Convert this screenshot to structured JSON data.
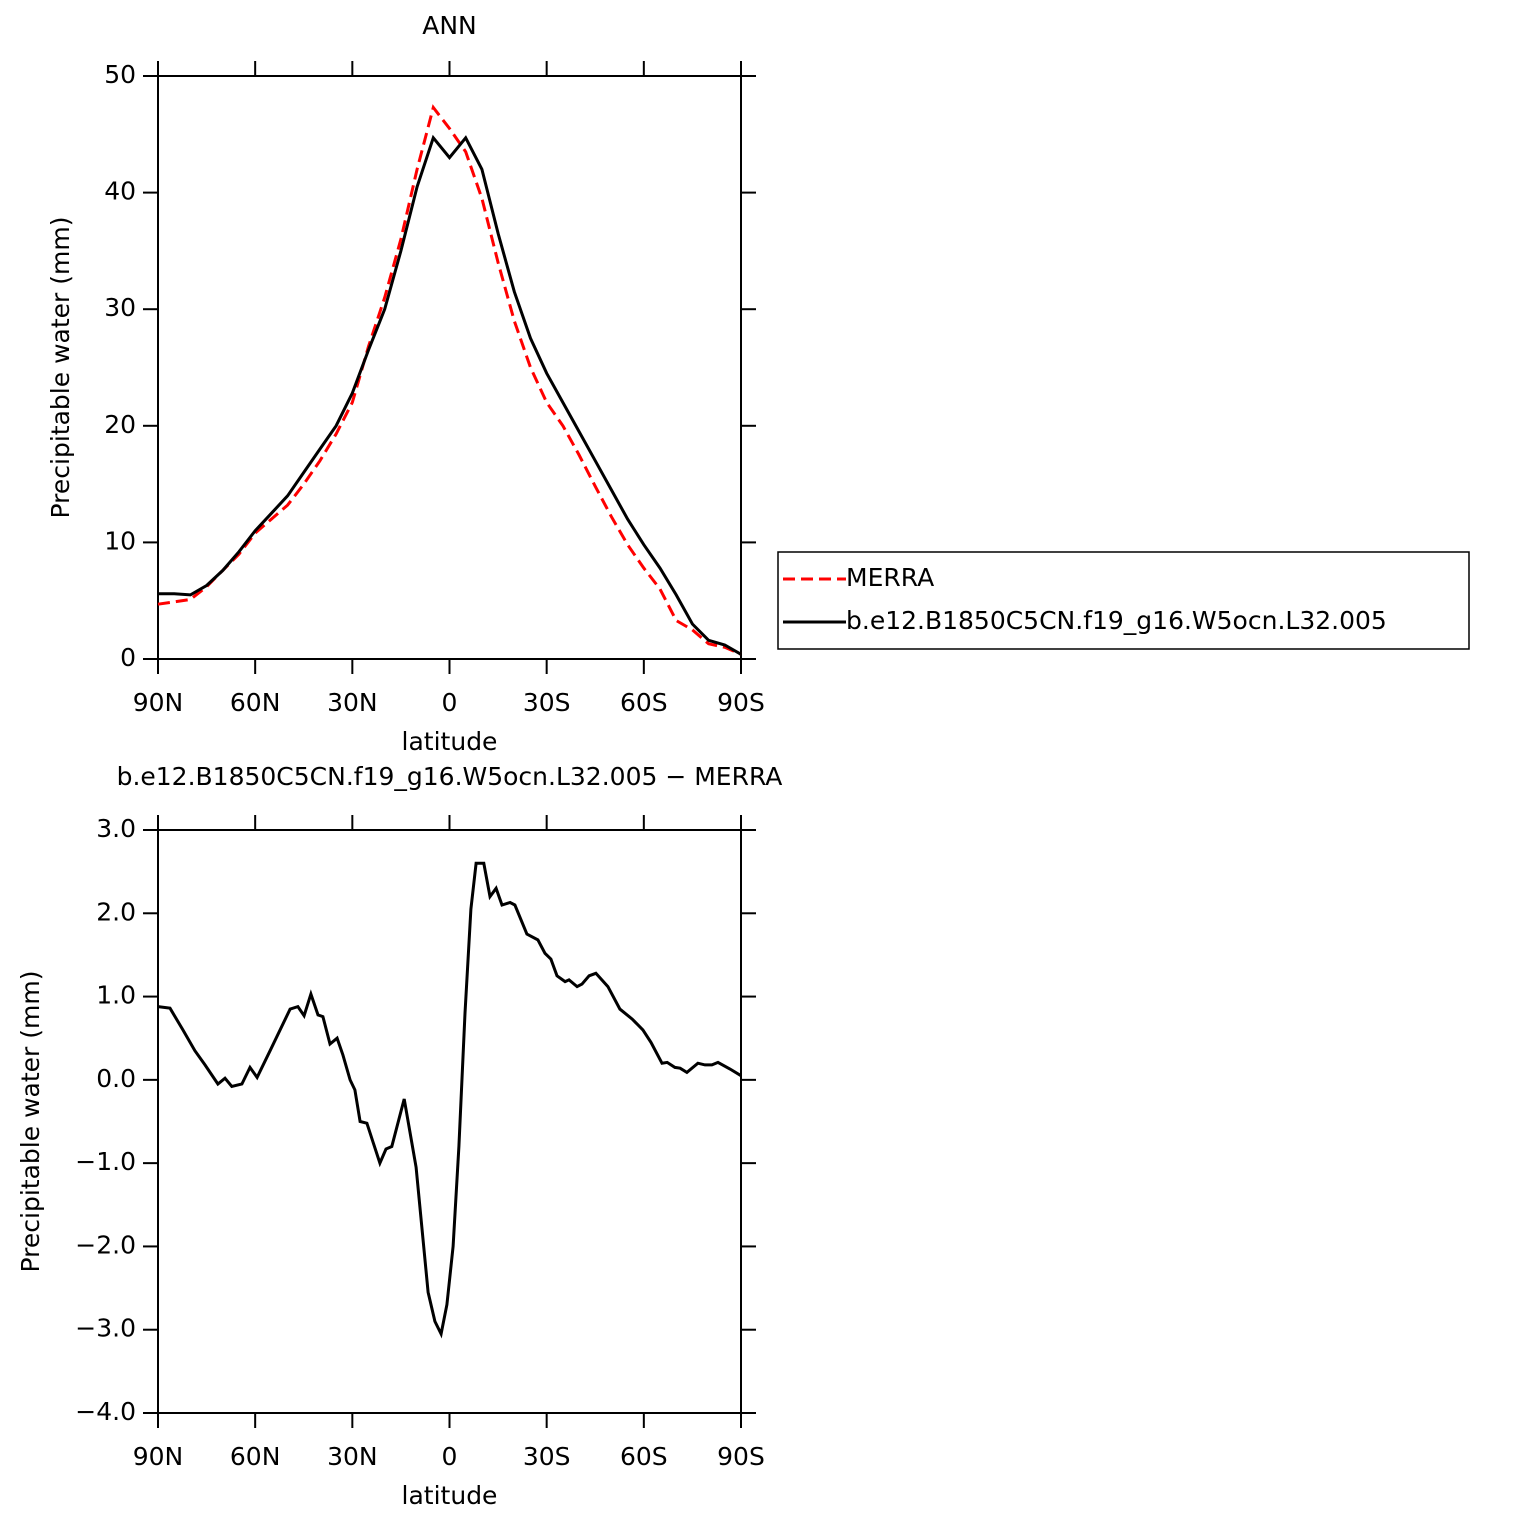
{
  "chart_data": [
    {
      "type": "line",
      "title": "ANN",
      "xlabel": "latitude",
      "ylabel": "Precipitable water (mm)",
      "x": [
        90,
        85,
        80,
        75,
        70,
        65,
        60,
        55,
        50,
        45,
        40,
        35,
        30,
        25,
        20,
        15,
        10,
        5,
        0,
        -5,
        -10,
        -15,
        -20,
        -25,
        -30,
        -35,
        -40,
        -45,
        -50,
        -55,
        -60,
        -65,
        -70,
        -75,
        -80,
        -85,
        -90
      ],
      "series": [
        {
          "name": "MERRA",
          "color": "#ff0000",
          "dashed": true,
          "values": [
            4.7,
            4.9,
            5.1,
            6.2,
            7.6,
            9.0,
            10.8,
            12.0,
            13.2,
            15.0,
            17.0,
            19.3,
            22.0,
            26.8,
            31.0,
            36.0,
            42.0,
            47.3,
            45.5,
            43.5,
            39.5,
            34.0,
            29.0,
            25.0,
            22.0,
            20.0,
            17.5,
            14.8,
            12.2,
            9.8,
            7.8,
            6.0,
            3.3,
            2.5,
            1.3,
            1.0,
            0.4
          ]
        },
        {
          "name": "b.e12.B1850C5CN.f19_g16.W5ocn.L32.005",
          "color": "#000000",
          "dashed": false,
          "values": [
            5.6,
            5.6,
            5.5,
            6.3,
            7.6,
            9.2,
            11.0,
            12.5,
            14.0,
            16.0,
            18.0,
            20.0,
            22.8,
            26.5,
            30.0,
            35.0,
            40.5,
            44.7,
            43.0,
            44.7,
            42.0,
            36.5,
            31.5,
            27.5,
            24.5,
            22.0,
            19.5,
            17.0,
            14.5,
            12.0,
            9.8,
            7.8,
            5.5,
            3.0,
            1.6,
            1.2,
            0.4
          ]
        }
      ],
      "xlim": [
        90,
        -90
      ],
      "ylim": [
        0,
        50
      ],
      "xticks": [
        {
          "value": 90,
          "label": "90N"
        },
        {
          "value": 60,
          "label": "60N"
        },
        {
          "value": 30,
          "label": "30N"
        },
        0,
        {
          "value": -30,
          "label": "30S"
        },
        {
          "value": -60,
          "label": "60S"
        },
        {
          "value": -90,
          "label": "90S"
        }
      ],
      "yticks": [
        0,
        10,
        20,
        30,
        40,
        50
      ],
      "legend": "outside right"
    },
    {
      "type": "line",
      "title": "b.e12.B1850C5CN.f19_g16.W5ocn.L32.005 − MERRA",
      "xlabel": "latitude",
      "ylabel": "Precipitable water (mm)",
      "x": [
        90,
        86.3,
        82.3,
        78.6,
        75.5,
        71.5,
        69.3,
        67.2,
        64.1,
        61.6,
        59.4,
        55.4,
        49.2,
        46.8,
        44.9,
        42.8,
        40.6,
        39.1,
        36.9,
        34.7,
        32.9,
        30.7,
        29.2,
        27.6,
        25.5,
        23.6,
        21.5,
        19.6,
        17.8,
        14.0,
        10.3,
        6.6,
        4.5,
        2.6,
        0.8,
        -1.1,
        -2.9,
        -4.8,
        -6.6,
        -8.2,
        -10.6,
        -12.5,
        -14.4,
        -16.2,
        -18.7,
        -20.2,
        -23.9,
        -27.3,
        -29.5,
        -31.3,
        -33.2,
        -35.7,
        -36.9,
        -39.4,
        -40.9,
        -43.1,
        -45.2,
        -48.9,
        -52.6,
        -56.4,
        -59.7,
        -62.2,
        -65.6,
        -67.2,
        -69.6,
        -71.2,
        -73.3,
        -76.7,
        -78.9,
        -81.0,
        -82.9,
        -86.6,
        -90
      ],
      "series": [
        {
          "name": "b.e12.B1850C5CN.f19_g16.W5ocn.L32.005",
          "color": "#000000",
          "dashed": false,
          "values": [
            0.88,
            0.86,
            0.6,
            0.35,
            0.18,
            -0.05,
            0.02,
            -0.08,
            -0.05,
            0.15,
            0.03,
            0.35,
            0.85,
            0.88,
            0.77,
            1.03,
            0.78,
            0.76,
            0.43,
            0.5,
            0.3,
            0.0,
            -0.12,
            -0.5,
            -0.52,
            -0.75,
            -1.0,
            -0.83,
            -0.8,
            -0.23,
            -1.05,
            -2.55,
            -2.9,
            -3.05,
            -2.7,
            -2.0,
            -0.8,
            0.8,
            2.05,
            2.6,
            2.6,
            2.2,
            2.3,
            2.1,
            2.13,
            2.1,
            1.75,
            1.68,
            1.52,
            1.45,
            1.25,
            1.18,
            1.2,
            1.12,
            1.15,
            1.25,
            1.28,
            1.12,
            0.85,
            0.73,
            0.6,
            0.45,
            0.2,
            0.21,
            0.15,
            0.14,
            0.09,
            0.2,
            0.18,
            0.18,
            0.21,
            0.13,
            0.05
          ]
        }
      ],
      "xlim": [
        90,
        -90
      ],
      "ylim": [
        -4,
        3
      ],
      "xticks": [
        {
          "value": 90,
          "label": "90N"
        },
        {
          "value": 60,
          "label": "60N"
        },
        {
          "value": 30,
          "label": "30N"
        },
        0,
        {
          "value": -30,
          "label": "30S"
        },
        {
          "value": -60,
          "label": "60S"
        },
        {
          "value": -90,
          "label": "90S"
        }
      ],
      "yticks": [
        {
          "value": 3,
          "label": "3.0"
        },
        {
          "value": 2,
          "label": "2.0"
        },
        {
          "value": 1,
          "label": "1.0"
        },
        {
          "value": 0,
          "label": "0.0"
        },
        {
          "value": -1,
          "label": "−1.0"
        },
        {
          "value": -2,
          "label": "−2.0"
        },
        {
          "value": -3,
          "label": "−3.0"
        },
        {
          "value": -4,
          "label": "−4.0"
        }
      ]
    }
  ]
}
